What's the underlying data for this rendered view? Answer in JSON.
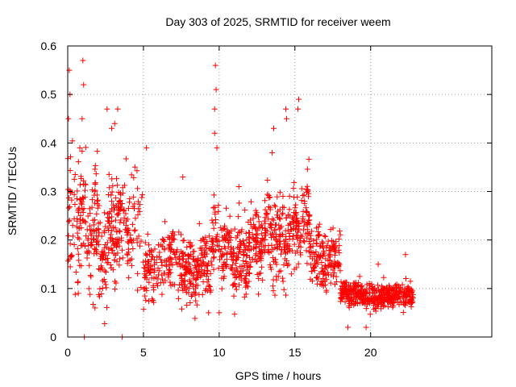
{
  "chart_data": {
    "type": "scatter",
    "title": "Day 303 of 2025, SRMTID for receiver weem",
    "xlabel": "GPS time / hours",
    "ylabel": "SRMTID / TECUs",
    "xlim": [
      0,
      28
    ],
    "ylim": [
      0,
      0.6
    ],
    "xticks": [
      0,
      5,
      10,
      15,
      20
    ],
    "yticks": [
      0,
      0.1,
      0.2,
      0.3,
      0.4,
      0.5,
      0.6
    ],
    "xtick_labels": [
      "0",
      "5",
      "10",
      "15",
      "20"
    ],
    "ytick_labels": [
      "0",
      "0.1",
      "0.2",
      "0.3",
      "0.4",
      "0.5",
      "0.6"
    ],
    "grid": true,
    "marker": "+",
    "color": "#ff0000",
    "x_range_data": [
      0,
      22.8
    ],
    "outliers": [
      {
        "x": 0.1,
        "y": 0.55
      },
      {
        "x": 0.15,
        "y": 0.5
      },
      {
        "x": 0.05,
        "y": 0.45
      },
      {
        "x": 1.0,
        "y": 0.57
      },
      {
        "x": 1.05,
        "y": 0.52
      },
      {
        "x": 0.95,
        "y": 0.45
      },
      {
        "x": 0.8,
        "y": 0.39
      },
      {
        "x": 2.6,
        "y": 0.47
      },
      {
        "x": 3.3,
        "y": 0.47
      },
      {
        "x": 3.1,
        "y": 0.44
      },
      {
        "x": 2.9,
        "y": 0.43
      },
      {
        "x": 9.75,
        "y": 0.56
      },
      {
        "x": 9.8,
        "y": 0.51
      },
      {
        "x": 9.7,
        "y": 0.47
      },
      {
        "x": 9.7,
        "y": 0.42
      },
      {
        "x": 9.85,
        "y": 0.39
      },
      {
        "x": 14.4,
        "y": 0.47
      },
      {
        "x": 14.45,
        "y": 0.45
      },
      {
        "x": 15.25,
        "y": 0.49
      },
      {
        "x": 15.2,
        "y": 0.47
      },
      {
        "x": 13.6,
        "y": 0.43
      },
      {
        "x": 13.5,
        "y": 0.38
      },
      {
        "x": 5.2,
        "y": 0.39
      },
      {
        "x": 1.1,
        "y": 0.0
      },
      {
        "x": 3.6,
        "y": 0.0
      },
      {
        "x": 0.7,
        "y": 0.09
      },
      {
        "x": 1.8,
        "y": 0.06
      },
      {
        "x": 9.3,
        "y": 0.05
      },
      {
        "x": 10.0,
        "y": 0.05
      },
      {
        "x": 18.5,
        "y": 0.02
      },
      {
        "x": 19.7,
        "y": 0.02
      },
      {
        "x": 7.6,
        "y": 0.33
      },
      {
        "x": 11.3,
        "y": 0.31
      },
      {
        "x": 20.5,
        "y": 0.15
      },
      {
        "x": 22.3,
        "y": 0.17
      }
    ],
    "segments": [
      {
        "x_start": 0.0,
        "x_end": 5.0,
        "mean": 0.22,
        "spread": 0.1,
        "n": 380
      },
      {
        "x_start": 5.0,
        "x_end": 9.5,
        "mean": 0.15,
        "spread": 0.06,
        "n": 340
      },
      {
        "x_start": 9.5,
        "x_end": 13.0,
        "mean": 0.18,
        "spread": 0.07,
        "n": 300
      },
      {
        "x_start": 13.0,
        "x_end": 16.0,
        "mean": 0.22,
        "spread": 0.08,
        "n": 260
      },
      {
        "x_start": 16.0,
        "x_end": 18.0,
        "mean": 0.17,
        "spread": 0.06,
        "n": 160
      },
      {
        "x_start": 18.0,
        "x_end": 22.8,
        "mean": 0.085,
        "spread": 0.022,
        "n": 420
      }
    ]
  }
}
